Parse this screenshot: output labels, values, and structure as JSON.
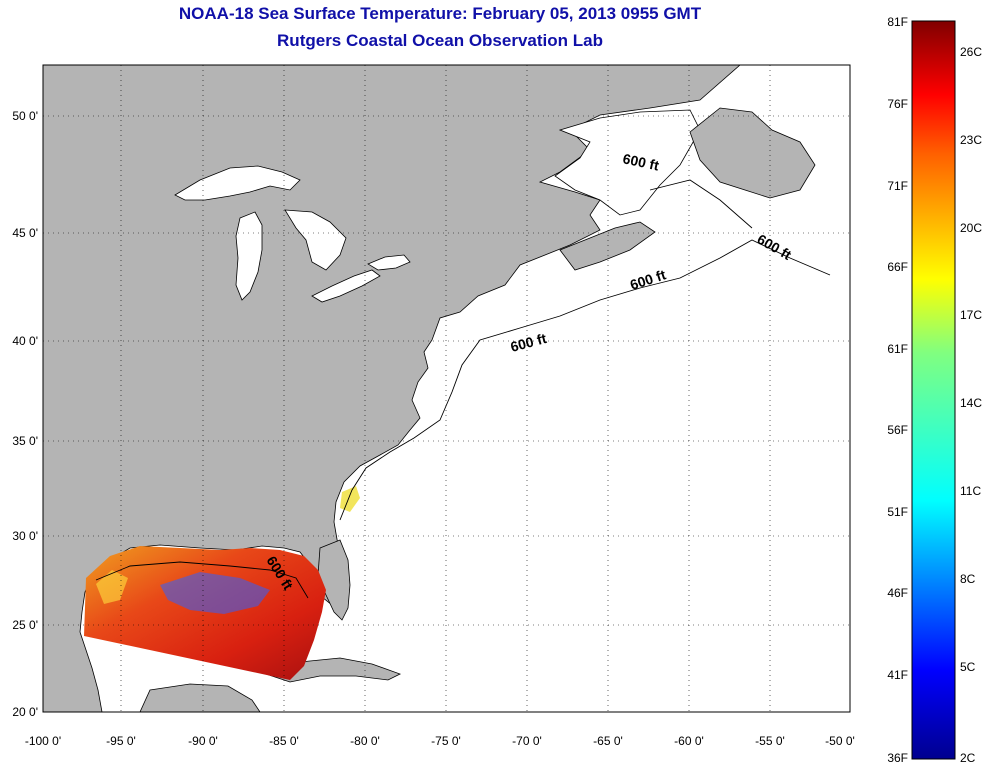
{
  "title": {
    "line1": "NOAA-18 Sea Surface Temperature:  February 05, 2013 0955 GMT",
    "line2": "Rutgers Coastal Ocean Observation Lab"
  },
  "map": {
    "lon_labels": [
      "-100 0'",
      "-95 0'",
      "-90 0'",
      "-85 0'",
      "-80 0'",
      "-75 0'",
      "-70 0'",
      "-65 0'",
      "-60 0'",
      "-55 0'",
      "-50 0'"
    ],
    "lat_labels": [
      "50 0'",
      "45 0'",
      "40 0'",
      "35 0'",
      "30 0'",
      "25 0'",
      "20 0'"
    ],
    "contour_label": "600 ft",
    "land_color": "#b4b4b4",
    "ocean_color": "#ffffff"
  },
  "colorbar": {
    "f_labels": [
      "81F",
      "76F",
      "71F",
      "66F",
      "61F",
      "56F",
      "51F",
      "46F",
      "41F",
      "36F"
    ],
    "c_labels": [
      "26C",
      "23C",
      "20C",
      "17C",
      "14C",
      "11C",
      "8C",
      "5C",
      "2C"
    ],
    "colormap": [
      "#00008f",
      "#0000ff",
      "#0080ff",
      "#00ffff",
      "#80ff80",
      "#ffff00",
      "#ff8000",
      "#ff0000",
      "#800000"
    ]
  }
}
